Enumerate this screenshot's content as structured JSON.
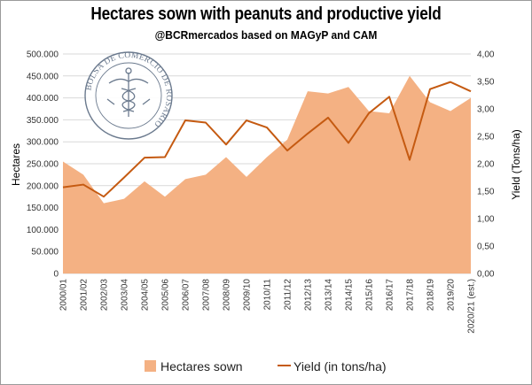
{
  "title": "Hectares sown with peanuts and productive yield",
  "subtitle": "@BCRmercados based on MAGyP and CAM",
  "watermark": {
    "text": "BOLSA DE COMERCIO DE ROSARIO"
  },
  "chart_data": {
    "type": "area+line",
    "categories": [
      "2000/01",
      "2001/02",
      "2002/03",
      "2003/04",
      "2004/05",
      "2005/06",
      "2006/07",
      "2007/08",
      "2008/09",
      "2009/10",
      "2010/11",
      "2011/12",
      "2012/13",
      "2013/14",
      "2014/15",
      "2015/16",
      "2016/17",
      "2017/18",
      "2018/19",
      "2019/20",
      "2020/21 (est.)"
    ],
    "series": [
      {
        "name": "Hectares sown",
        "type": "area",
        "axis": "left",
        "color": "#f4b183",
        "values": [
          255000,
          225000,
          160000,
          170000,
          210000,
          175000,
          215000,
          225000,
          265000,
          220000,
          265000,
          305000,
          415000,
          410000,
          425000,
          370000,
          365000,
          450000,
          390000,
          370000,
          400000
        ]
      },
      {
        "name": "Yield (in tons/ha)",
        "type": "line",
        "axis": "right",
        "color": "#c55a11",
        "values": [
          1.57,
          1.62,
          1.4,
          1.75,
          2.11,
          2.12,
          2.79,
          2.75,
          2.35,
          2.79,
          2.66,
          2.24,
          2.55,
          2.84,
          2.38,
          2.92,
          3.22,
          2.07,
          3.36,
          3.49,
          3.32
        ]
      }
    ],
    "y_left": {
      "label": "Hectares",
      "min": 0,
      "max": 500000,
      "ticks": [
        "0",
        "50.000",
        "100.000",
        "150.000",
        "200.000",
        "250.000",
        "300.000",
        "350.000",
        "400.000",
        "450.000",
        "500.000"
      ]
    },
    "y_right": {
      "label": "Yield (Tons/ha)",
      "min": 0,
      "max": 4,
      "ticks": [
        "0,00",
        "0,50",
        "1,00",
        "1,50",
        "2,00",
        "2,50",
        "3,00",
        "3,50",
        "4,00"
      ]
    },
    "gridlines": true,
    "legend_position": "bottom"
  }
}
